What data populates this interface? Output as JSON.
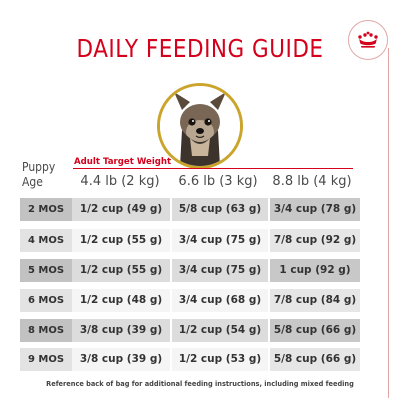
{
  "title": "DAILY FEEDING GUIDE",
  "brand": {
    "logo_icon": "royal-canin-crown-icon",
    "accent_color": "#d5001c",
    "frame_color": "#caa42b"
  },
  "photo": {
    "subject": "yorkshire-terrier-puppy"
  },
  "table": {
    "age_header": [
      "Puppy",
      "Age"
    ],
    "weight_caption": "Adult Target Weight",
    "weight_headers": [
      "4.4 lb (2 kg)",
      "6.6 lb (3 kg)",
      "8.8 lb (4 kg)"
    ],
    "rows": [
      {
        "age": "2 MOS",
        "values": [
          "1/2 cup (49 g)",
          "5/8 cup (63 g)",
          "3/4 cup (78 g)"
        ]
      },
      {
        "age": "4 MOS",
        "values": [
          "1/2 cup (55 g)",
          "3/4 cup (75 g)",
          "7/8 cup (92 g)"
        ]
      },
      {
        "age": "5 MOS",
        "values": [
          "1/2 cup (55 g)",
          "3/4 cup (75 g)",
          "1 cup (92 g)"
        ]
      },
      {
        "age": "6 MOS",
        "values": [
          "1/2 cup (48 g)",
          "3/4 cup (68 g)",
          "7/8 cup (84 g)"
        ]
      },
      {
        "age": "8 MOS",
        "values": [
          "3/8 cup (39 g)",
          "1/2 cup (54 g)",
          "5/8 cup (66 g)"
        ]
      },
      {
        "age": "9 MOS",
        "values": [
          "3/8 cup (39 g)",
          "1/2 cup (53 g)",
          "5/8 cup (66 g)"
        ]
      }
    ]
  },
  "footnote": "Reference back of bag for additional feeding instructions, including mixed feeding"
}
